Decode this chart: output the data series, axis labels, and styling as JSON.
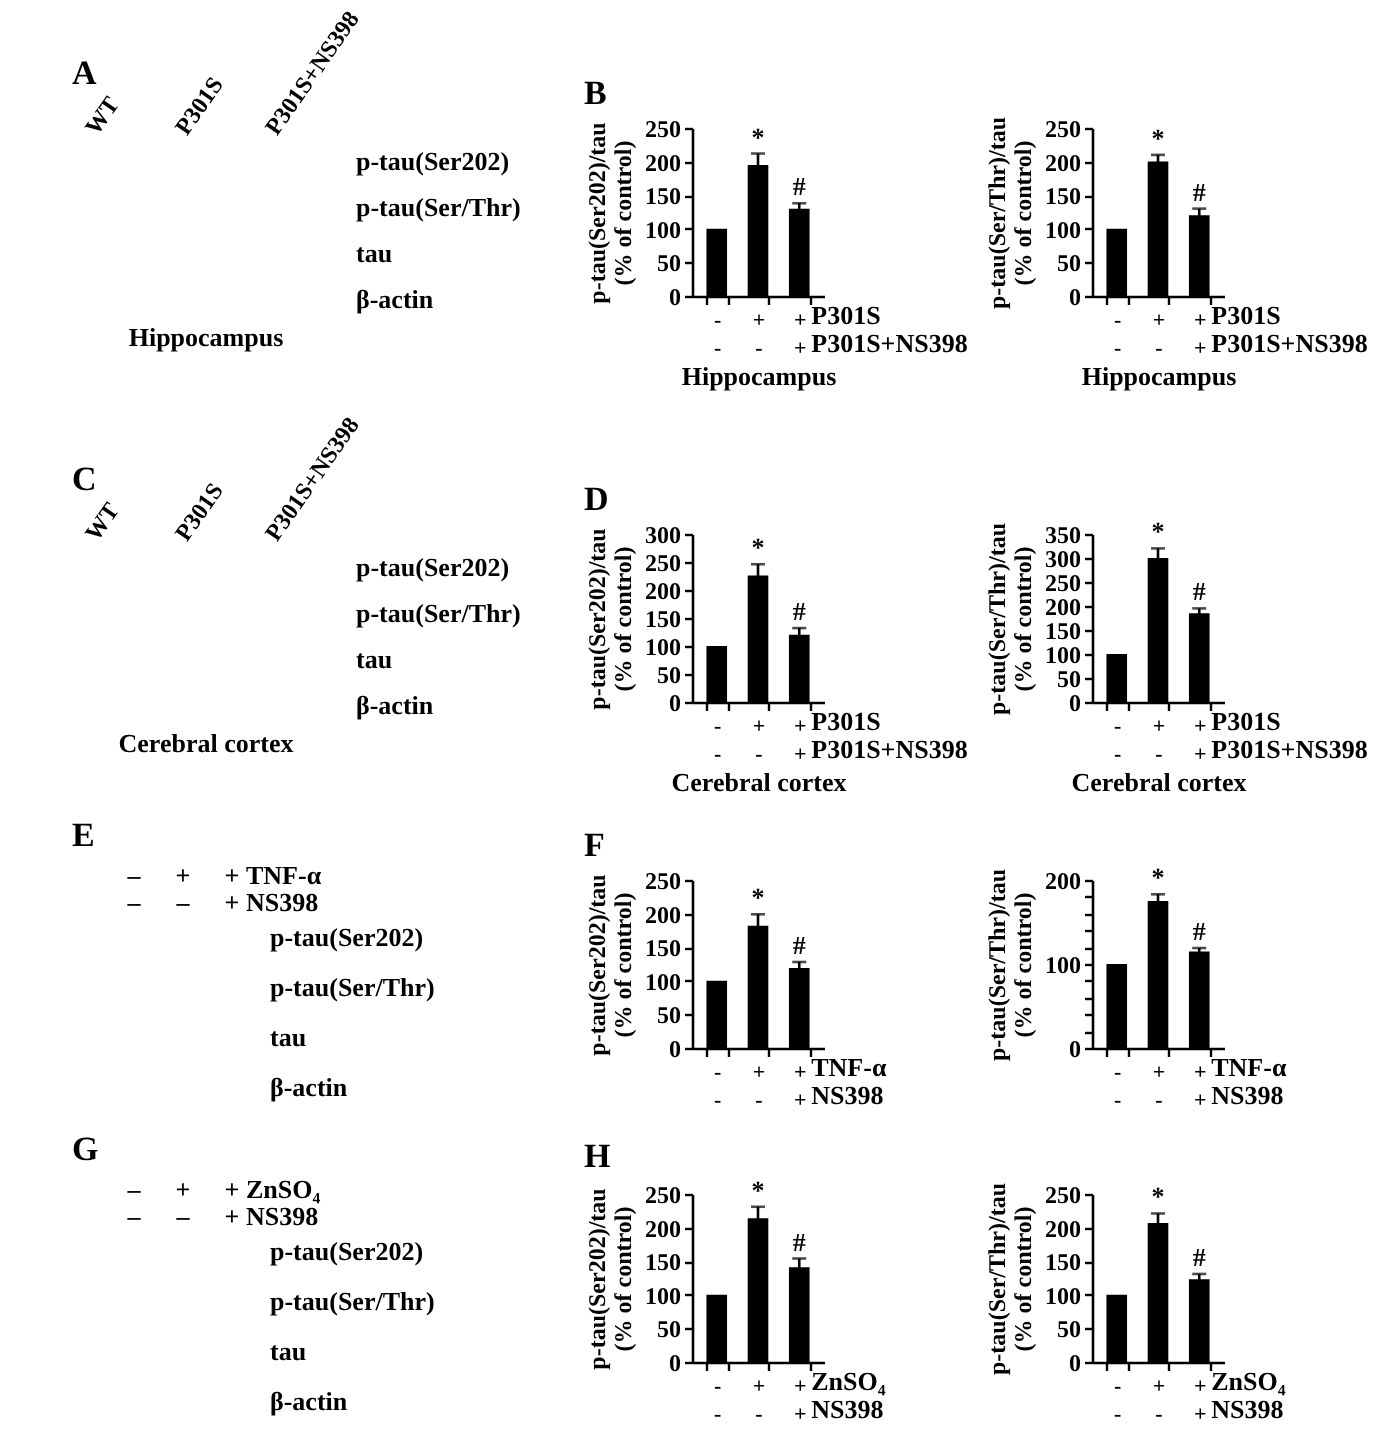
{
  "chart_data": [
    {
      "type": "other",
      "title": "A",
      "categories": [
        "WT",
        "P301S",
        "P301S+NS398"
      ],
      "y_categories": [
        "p-tau(Ser202)",
        "p-tau(Ser/Thr)",
        "tau",
        "β-actin"
      ],
      "xlabel": "Hippocampus"
    },
    {
      "type": "bar",
      "title": "B",
      "ylabel": "p-tau(Ser202)/tau\n(% of control)",
      "xlabel": "Hippocampus",
      "categories": [
        "-\n-",
        "+\n-",
        "+\n+"
      ],
      "values": [
        100,
        195,
        130
      ],
      "errors": [
        null,
        17,
        8
      ],
      "color": "#000000",
      "ylim": [
        0,
        250
      ],
      "yticks": [
        0,
        50,
        100,
        150,
        200,
        250
      ],
      "annotations": [
        {
          "text": "*",
          "x": "+\n-",
          "y": 212
        },
        {
          "text": "#",
          "x": "+\n+",
          "y": 138
        },
        "P301S",
        "P301S+NS398"
      ]
    },
    {
      "type": "bar",
      "ylabel": "p-tau(Ser/Thr)/tau\n(% of control)",
      "xlabel": "Hippocampus",
      "categories": [
        "-\n-",
        "+\n-",
        "+\n+"
      ],
      "values": [
        100,
        200,
        120
      ],
      "errors": [
        null,
        10,
        10
      ],
      "color": "#000000",
      "ylim": [
        0,
        250
      ],
      "yticks": [
        0,
        50,
        100,
        150,
        200,
        250
      ],
      "annotations": [
        {
          "text": "*",
          "x": "+\n-",
          "y": 210
        },
        {
          "text": "#",
          "x": "+\n+",
          "y": 130
        },
        "P301S",
        "P301S+NS398"
      ]
    },
    {
      "type": "other",
      "title": "C",
      "categories": [
        "WT",
        "P301S",
        "P301S+NS398"
      ],
      "y_categories": [
        "p-tau(Ser202)",
        "p-tau(Ser/Thr)",
        "tau",
        "β-actin"
      ],
      "xlabel": "Cerebral cortex"
    },
    {
      "type": "bar",
      "title": "D",
      "ylabel": "p-tau(Ser202)/tau\n(% of control)",
      "xlabel": "Cerebral cortex",
      "categories": [
        "-\n-",
        "+\n-",
        "+\n+"
      ],
      "values": [
        100,
        226,
        120
      ],
      "errors": [
        null,
        20,
        12
      ],
      "color": "#000000",
      "ylim": [
        0,
        300
      ],
      "yticks": [
        0,
        50,
        100,
        150,
        200,
        250,
        300
      ],
      "annotations": [
        {
          "text": "*",
          "x": "+\n-",
          "y": 246
        },
        {
          "text": "#",
          "x": "+\n+",
          "y": 132
        },
        "P301S",
        "P301S+NS398"
      ]
    },
    {
      "type": "bar",
      "ylabel": "p-tau(Ser/Thr)/tau\n(% of control)",
      "xlabel": "Cerebral cortex",
      "categories": [
        "-\n-",
        "+\n-",
        "+\n+"
      ],
      "values": [
        100,
        300,
        185
      ],
      "errors": [
        null,
        20,
        10
      ],
      "color": "#000000",
      "ylim": [
        0,
        350
      ],
      "yticks": [
        0,
        50,
        100,
        150,
        200,
        250,
        300,
        350
      ],
      "annotations": [
        {
          "text": "*",
          "x": "+\n-",
          "y": 320
        },
        {
          "text": "#",
          "x": "+\n+",
          "y": 195
        },
        "P301S",
        "P301S+NS398"
      ]
    },
    {
      "type": "other",
      "title": "E",
      "categories": [
        "–\n–",
        "+\n–",
        "+\n+"
      ],
      "annotations": [
        "TNF-α",
        "NS398"
      ],
      "y_categories": [
        "p-tau(Ser202)",
        "p-tau(Ser/Thr)",
        "tau",
        "β-actin"
      ]
    },
    {
      "type": "bar",
      "title": "F",
      "ylabel": "p-tau(Ser202)/tau\n(% of control)",
      "categories": [
        "-\n-",
        "+\n-",
        "+\n+"
      ],
      "values": [
        100,
        182,
        119
      ],
      "errors": [
        null,
        17,
        9
      ],
      "color": "#000000",
      "ylim": [
        0,
        250
      ],
      "yticks": [
        0,
        50,
        100,
        150,
        200,
        250
      ],
      "annotations": [
        {
          "text": "*",
          "x": "+\n-",
          "y": 199
        },
        {
          "text": "#",
          "x": "+\n+",
          "y": 128
        },
        "TNF-α",
        "NS398"
      ]
    },
    {
      "type": "bar",
      "ylabel": "p-tau(Ser/Thr)/tau\n(% of control)",
      "categories": [
        "-\n-",
        "+\n-",
        "+\n+"
      ],
      "values": [
        100,
        175,
        115
      ],
      "errors": [
        null,
        8,
        4
      ],
      "color": "#000000",
      "ylim": [
        0,
        200
      ],
      "yticks": [
        0,
        {
          "value": 20,
          "label": null
        },
        {
          "value": 40,
          "label": null
        },
        {
          "value": 60,
          "label": null
        },
        {
          "value": 80,
          "label": null
        },
        100,
        {
          "value": 120,
          "label": null
        },
        {
          "value": 140,
          "label": null
        },
        {
          "value": 160,
          "label": null
        },
        {
          "value": 180,
          "label": null
        },
        200
      ],
      "annotations": [
        {
          "text": "*",
          "x": "+\n-",
          "y": 183
        },
        {
          "text": "#",
          "x": "+\n+",
          "y": 119
        },
        "TNF-α",
        "NS398"
      ]
    },
    {
      "type": "other",
      "title": "G",
      "categories": [
        "–\n–",
        "+\n–",
        "+\n+"
      ],
      "annotations": [
        "ZnSO₄",
        "NS398"
      ],
      "y_categories": [
        "p-tau(Ser202)",
        "p-tau(Ser/Thr)",
        "tau",
        "β-actin"
      ]
    },
    {
      "type": "bar",
      "title": "H",
      "ylabel": "p-tau(Ser202)/tau\n(% of control)",
      "categories": [
        "-\n-",
        "+\n-",
        "+\n+"
      ],
      "values": [
        100,
        214,
        141
      ],
      "errors": [
        null,
        17,
        13
      ],
      "color": "#000000",
      "ylim": [
        0,
        250
      ],
      "yticks": [
        0,
        50,
        100,
        150,
        200,
        250
      ],
      "annotations": [
        {
          "text": "*",
          "x": "+\n-",
          "y": 231
        },
        {
          "text": "#",
          "x": "+\n+",
          "y": 154
        },
        "ZnSO₄",
        "NS398"
      ]
    },
    {
      "type": "bar",
      "ylabel": "p-tau(Ser/Thr)/tau\n(% of control)",
      "categories": [
        "-\n-",
        "+\n-",
        "+\n+"
      ],
      "values": [
        100,
        207,
        123
      ],
      "errors": [
        null,
        14,
        8
      ],
      "color": "#000000",
      "ylim": [
        0,
        250
      ],
      "yticks": [
        0,
        50,
        100,
        150,
        200,
        250
      ],
      "annotations": [
        {
          "text": "*",
          "x": "+\n-",
          "y": 221
        },
        {
          "text": "#",
          "x": "+\n+",
          "y": 131
        },
        "ZnSO₄",
        "NS398"
      ]
    }
  ]
}
